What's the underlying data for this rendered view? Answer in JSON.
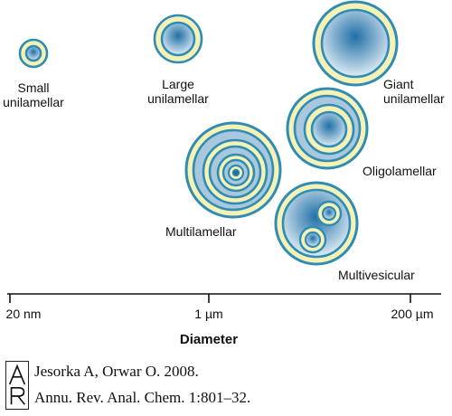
{
  "labels": {
    "small": [
      "Small",
      "unilamellar"
    ],
    "large": [
      "Large",
      "unilamellar"
    ],
    "giant": [
      "Giant",
      "unilamellar"
    ],
    "oligo": "Oligolamellar",
    "multi": "Multilamellar",
    "vesic": "Multivesicular"
  },
  "axis": {
    "ticks": [
      "20 nm",
      "1 µm",
      "200 µm"
    ],
    "title": "Diameter"
  },
  "citation": {
    "logo_text": "AR",
    "line1": "Jesorka A, Orwar O. 2008.",
    "line2": "Annu. Rev. Anal. Chem. 1:801–32."
  },
  "colors": {
    "membrane_outline": "#2f8cb5",
    "membrane_fill": "#f6f1b4",
    "lumen_center": "#1f6fa6",
    "lumen_edge": "#dfecf4"
  }
}
